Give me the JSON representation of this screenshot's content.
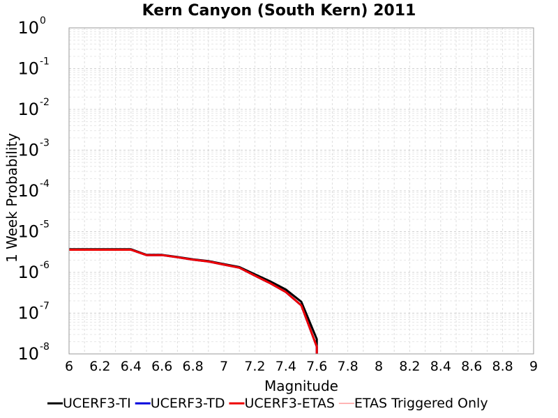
{
  "chart_data": {
    "type": "line",
    "title": "Kern Canyon (South Kern) 2011",
    "xlabel": "Magnitude",
    "ylabel": "1 Week Probability",
    "xlim": [
      6,
      9
    ],
    "ylim": [
      1e-08,
      1
    ],
    "yscale": "log",
    "grid": true,
    "legend_position": "bottom",
    "x_ticks": [
      "6",
      "6.2",
      "6.4",
      "6.6",
      "6.8",
      "7",
      "7.2",
      "7.4",
      "7.6",
      "7.8",
      "8",
      "8.2",
      "8.4",
      "8.6",
      "8.8",
      "9"
    ],
    "y_ticks": [
      {
        "base": "10",
        "exp": "0"
      },
      {
        "base": "10",
        "exp": "-1"
      },
      {
        "base": "10",
        "exp": "-2"
      },
      {
        "base": "10",
        "exp": "-3"
      },
      {
        "base": "10",
        "exp": "-4"
      },
      {
        "base": "10",
        "exp": "-5"
      },
      {
        "base": "10",
        "exp": "-6"
      },
      {
        "base": "10",
        "exp": "-7"
      },
      {
        "base": "10",
        "exp": "-8"
      }
    ],
    "series": [
      {
        "name": "UCERF3-TI",
        "color": "#000000",
        "width": 3,
        "x": [
          6.0,
          6.1,
          6.2,
          6.3,
          6.4,
          6.5,
          6.6,
          6.7,
          6.8,
          6.9,
          7.0,
          7.1,
          7.2,
          7.3,
          7.4,
          7.5,
          7.6,
          7.6
        ],
        "y": [
          3.7e-06,
          3.7e-06,
          3.7e-06,
          3.7e-06,
          3.7e-06,
          2.7e-06,
          2.7e-06,
          2.4e-06,
          2.1e-06,
          1.9e-06,
          1.6e-06,
          1.35e-06,
          9e-07,
          6e-07,
          3.8e-07,
          1.9e-07,
          2.3e-08,
          1e-08
        ]
      },
      {
        "name": "UCERF3-TD",
        "color": "#0000dd",
        "width": 3,
        "x": [
          6.0,
          6.1,
          6.2,
          6.3,
          6.4,
          6.5,
          6.6,
          6.7,
          6.8,
          6.9,
          7.0,
          7.1,
          7.2,
          7.3,
          7.4,
          7.5,
          7.6,
          7.6
        ],
        "y": [
          3.6e-06,
          3.6e-06,
          3.6e-06,
          3.6e-06,
          3.6e-06,
          2.65e-06,
          2.65e-06,
          2.35e-06,
          2.05e-06,
          1.85e-06,
          1.55e-06,
          1.3e-06,
          8.3e-07,
          5.4e-07,
          3.3e-07,
          1.55e-07,
          1.5e-08,
          1e-08
        ]
      },
      {
        "name": "UCERF3-ETAS",
        "color": "#ee0000",
        "width": 3,
        "x": [
          6.0,
          6.1,
          6.2,
          6.3,
          6.4,
          6.5,
          6.6,
          6.7,
          6.8,
          6.9,
          7.0,
          7.1,
          7.2,
          7.3,
          7.4,
          7.5,
          7.6,
          7.6
        ],
        "y": [
          3.6e-06,
          3.6e-06,
          3.6e-06,
          3.6e-06,
          3.6e-06,
          2.65e-06,
          2.65e-06,
          2.35e-06,
          2.05e-06,
          1.85e-06,
          1.55e-06,
          1.3e-06,
          8.3e-07,
          5.4e-07,
          3.3e-07,
          1.55e-07,
          1.5e-08,
          1e-08
        ]
      },
      {
        "name": "ETAS Triggered Only",
        "color": "#ff6a6a",
        "width": 1,
        "x": [],
        "y": []
      }
    ]
  }
}
